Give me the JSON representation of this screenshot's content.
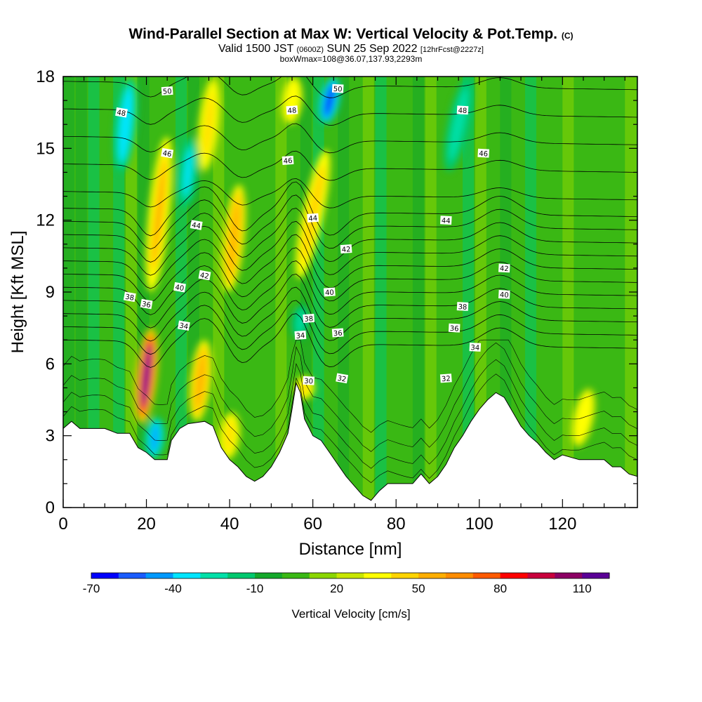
{
  "header": {
    "title_main": "Wind-Parallel Section at Max W: Vertical Velocity & Pot.Temp.",
    "title_mark": "(C)",
    "valid_a": "Valid 1500 JST",
    "valid_b": "(0600Z)",
    "valid_c": "SUN 25 Sep 2022",
    "valid_d": "[12hrFcst@2227z]",
    "box_info": "boxWmax=108@36.07,137.93,2293m"
  },
  "chart_data": {
    "type": "heatmap",
    "xlabel": "Distance [nm]",
    "ylabel": "Height [Kft MSL]",
    "xlim": [
      0,
      138
    ],
    "ylim": [
      0,
      18
    ],
    "x_ticks": [
      0,
      20,
      40,
      60,
      80,
      100,
      120
    ],
    "y_ticks": [
      0,
      3,
      6,
      9,
      12,
      15,
      18
    ],
    "colorbar": {
      "label": "Vertical Velocity [cm/s]",
      "min": -70,
      "step": 10,
      "tick_labels": [
        "-70",
        "-40",
        "-10",
        "20",
        "50",
        "80",
        "110"
      ],
      "colors": [
        "#0000ff",
        "#1a5cff",
        "#0099ff",
        "#00e5ff",
        "#00e0a8",
        "#00c86e",
        "#14a82a",
        "#3ab814",
        "#8ad600",
        "#c8e600",
        "#ffff00",
        "#ffd400",
        "#ffae00",
        "#ff8c00",
        "#ff5a00",
        "#ff0000",
        "#c8003c",
        "#8c0064",
        "#5a0096"
      ]
    },
    "terrain_kft": [
      [
        0,
        3.3
      ],
      [
        2,
        3.6
      ],
      [
        4,
        3.3
      ],
      [
        10,
        3.3
      ],
      [
        13,
        3.1
      ],
      [
        16,
        3.1
      ],
      [
        18,
        2.5
      ],
      [
        20,
        2.3
      ],
      [
        22,
        2.0
      ],
      [
        25,
        2.0
      ],
      [
        26,
        2.8
      ],
      [
        28,
        3.3
      ],
      [
        30,
        3.5
      ],
      [
        34,
        3.6
      ],
      [
        36,
        3.4
      ],
      [
        38,
        2.5
      ],
      [
        40,
        2.0
      ],
      [
        42,
        1.7
      ],
      [
        44,
        1.3
      ],
      [
        46,
        1.1
      ],
      [
        48,
        1.3
      ],
      [
        50,
        1.7
      ],
      [
        52,
        2.3
      ],
      [
        54,
        3.1
      ],
      [
        55,
        4.1
      ],
      [
        56,
        5.2
      ],
      [
        57,
        4.8
      ],
      [
        58,
        3.7
      ],
      [
        60,
        3.0
      ],
      [
        62,
        2.8
      ],
      [
        64,
        2.3
      ],
      [
        66,
        1.8
      ],
      [
        68,
        1.3
      ],
      [
        70,
        0.9
      ],
      [
        72,
        0.5
      ],
      [
        74,
        0.3
      ],
      [
        76,
        0.7
      ],
      [
        78,
        1.0
      ],
      [
        80,
        1.0
      ],
      [
        84,
        1.0
      ],
      [
        86,
        1.4
      ],
      [
        88,
        1.0
      ],
      [
        90,
        1.3
      ],
      [
        92,
        1.8
      ],
      [
        94,
        2.5
      ],
      [
        96,
        3.0
      ],
      [
        98,
        3.6
      ],
      [
        100,
        4.1
      ],
      [
        102,
        4.5
      ],
      [
        104,
        4.8
      ],
      [
        106,
        4.6
      ],
      [
        108,
        4.0
      ],
      [
        110,
        3.4
      ],
      [
        112,
        3.0
      ],
      [
        114,
        2.7
      ],
      [
        116,
        2.3
      ],
      [
        118,
        2.0
      ],
      [
        120,
        2.2
      ],
      [
        124,
        2.0
      ],
      [
        130,
        2.0
      ],
      [
        132,
        1.7
      ],
      [
        134,
        1.7
      ],
      [
        136,
        1.4
      ],
      [
        138,
        1.3
      ]
    ],
    "updrafts": [
      {
        "x": 20,
        "ybot": 3.5,
        "ytop": 7.5,
        "w": 110
      },
      {
        "x": 33,
        "ybot": 3.6,
        "ytop": 7.0,
        "w": 55
      },
      {
        "x": 23,
        "ybot": 9.0,
        "ytop": 15.5,
        "w": 50
      },
      {
        "x": 41,
        "ybot": 9.0,
        "ytop": 13.5,
        "w": 55
      },
      {
        "x": 60,
        "ybot": 9.5,
        "ytop": 15.0,
        "w": 45
      },
      {
        "x": 40,
        "ybot": 2.0,
        "ytop": 4.0,
        "w": 40
      },
      {
        "x": 58,
        "ybot": 4.5,
        "ytop": 5.5,
        "w": 40
      },
      {
        "x": 125,
        "ybot": 2.5,
        "ytop": 5.0,
        "w": 35
      },
      {
        "x": 35,
        "ybot": 14.0,
        "ytop": 18.0,
        "w": 40
      },
      {
        "x": 55,
        "ybot": 16.0,
        "ytop": 18.0,
        "w": 35
      }
    ],
    "downdrafts": [
      {
        "x": 22,
        "ybot": 2.0,
        "ytop": 3.8,
        "w": -50
      },
      {
        "x": 15,
        "ybot": 14.0,
        "ytop": 18.0,
        "w": -40
      },
      {
        "x": 30,
        "ybot": 12.5,
        "ytop": 15.5,
        "w": -35
      },
      {
        "x": 64,
        "ybot": 16.0,
        "ytop": 18.0,
        "w": -65
      },
      {
        "x": 95,
        "ybot": 14.0,
        "ytop": 18.0,
        "w": -30
      },
      {
        "x": 57,
        "ybot": 7.0,
        "ytop": 8.5,
        "w": -25
      }
    ],
    "theta_levels": [
      30,
      32,
      34,
      36,
      38,
      40,
      42,
      44,
      46,
      48,
      50
    ],
    "theta_labels": [
      {
        "text": "50",
        "x": 25,
        "y": 17.4
      },
      {
        "text": "50",
        "x": 66,
        "y": 17.5
      },
      {
        "text": "48",
        "x": 14,
        "y": 16.5
      },
      {
        "text": "48",
        "x": 55,
        "y": 16.6
      },
      {
        "text": "48",
        "x": 96,
        "y": 16.6
      },
      {
        "text": "46",
        "x": 25,
        "y": 14.8
      },
      {
        "text": "46",
        "x": 54,
        "y": 14.5
      },
      {
        "text": "46",
        "x": 101,
        "y": 14.8
      },
      {
        "text": "44",
        "x": 32,
        "y": 11.8
      },
      {
        "text": "44",
        "x": 60,
        "y": 12.1
      },
      {
        "text": "44",
        "x": 92,
        "y": 12.0
      },
      {
        "text": "42",
        "x": 34,
        "y": 9.7
      },
      {
        "text": "42",
        "x": 68,
        "y": 10.8
      },
      {
        "text": "42",
        "x": 106,
        "y": 10.0
      },
      {
        "text": "40",
        "x": 28,
        "y": 9.2
      },
      {
        "text": "40",
        "x": 64,
        "y": 9.0
      },
      {
        "text": "40",
        "x": 106,
        "y": 8.9
      },
      {
        "text": "38",
        "x": 16,
        "y": 8.8
      },
      {
        "text": "38",
        "x": 59,
        "y": 7.9
      },
      {
        "text": "38",
        "x": 96,
        "y": 8.4
      },
      {
        "text": "36",
        "x": 20,
        "y": 8.5
      },
      {
        "text": "36",
        "x": 66,
        "y": 7.3
      },
      {
        "text": "36",
        "x": 94,
        "y": 7.5
      },
      {
        "text": "34",
        "x": 29,
        "y": 7.6
      },
      {
        "text": "34",
        "x": 57,
        "y": 7.2
      },
      {
        "text": "34",
        "x": 99,
        "y": 6.7
      },
      {
        "text": "32",
        "x": 67,
        "y": 5.4
      },
      {
        "text": "32",
        "x": 92,
        "y": 5.4
      },
      {
        "text": "30",
        "x": 59,
        "y": 5.3
      }
    ]
  }
}
